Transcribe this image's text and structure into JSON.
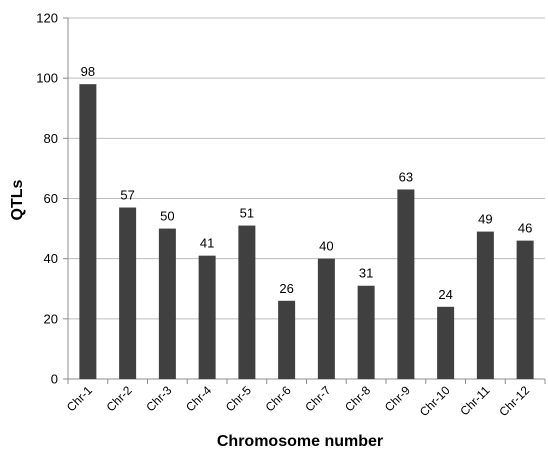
{
  "chart_data": {
    "type": "bar",
    "categories": [
      "Chr-1",
      "Chr-2",
      "Chr-3",
      "Chr-4",
      "Chr-5",
      "Chr-6",
      "Chr-7",
      "Chr-8",
      "Chr-9",
      "Chr-10",
      "Chr-11",
      "Chr-12"
    ],
    "values": [
      98,
      57,
      50,
      41,
      51,
      26,
      40,
      31,
      63,
      24,
      49,
      46
    ],
    "title": "",
    "xlabel": "Chromosome number",
    "ylabel": "QTLs",
    "ylim": [
      0,
      120
    ],
    "yticks": [
      "0",
      "20",
      "40",
      "60",
      "80",
      "100",
      "120"
    ],
    "grid": "horizontal",
    "legend": "none",
    "colors": {
      "bar": "#404040",
      "grid": "#bdbdbd",
      "axis": "#8c8c8c"
    }
  }
}
